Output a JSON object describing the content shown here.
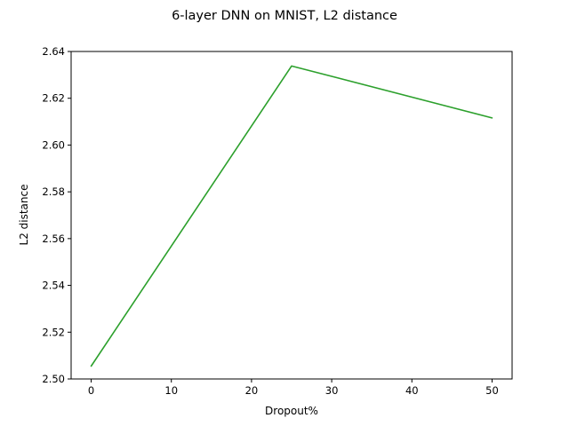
{
  "chart_data": {
    "type": "line",
    "title": "6-layer DNN on MNIST, L2 distance",
    "xlabel": "Dropout%",
    "ylabel": "L2 distance",
    "xlim": [
      -2.5,
      52.5
    ],
    "ylim": [
      2.5,
      2.64
    ],
    "xticks": [
      0,
      10,
      20,
      30,
      40,
      50
    ],
    "yticks": [
      2.5,
      2.52,
      2.54,
      2.56,
      2.58,
      2.6,
      2.62,
      2.64
    ],
    "xtick_labels": [
      "0",
      "10",
      "20",
      "30",
      "40",
      "50"
    ],
    "ytick_labels": [
      "2.50",
      "2.52",
      "2.54",
      "2.56",
      "2.58",
      "2.60",
      "2.62",
      "2.64"
    ],
    "grid": false,
    "legend": "none",
    "series": [
      {
        "x": [
          0,
          25,
          50
        ],
        "values": [
          2.5055,
          2.6338,
          2.6116
        ],
        "color": "#2ca02c"
      }
    ]
  }
}
